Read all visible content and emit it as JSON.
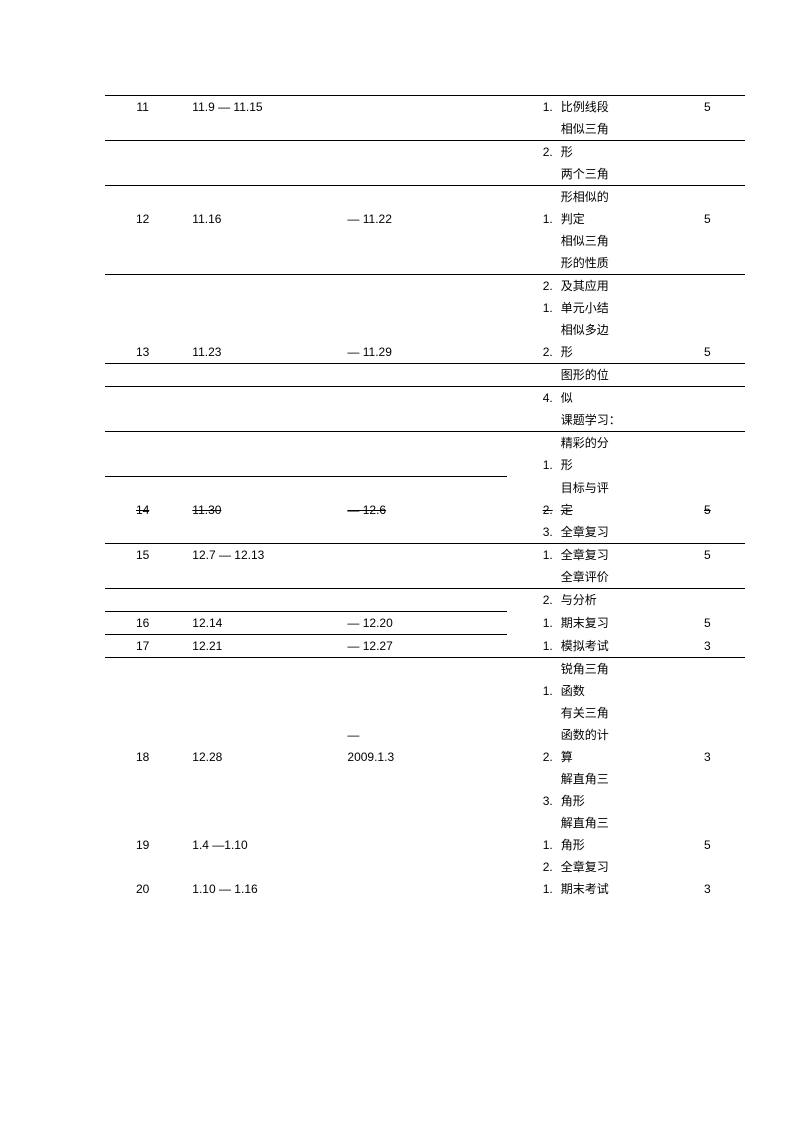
{
  "rows": [
    {
      "type": "hr"
    },
    {
      "week": "11",
      "date1": "11.9 — 11.15",
      "date2": "",
      "idx": "1.",
      "content": "比例线段",
      "hours": "5"
    },
    {
      "week": "",
      "date1": "",
      "date2": "",
      "idx": "",
      "content": "相似三角",
      "hours": ""
    },
    {
      "type": "hr"
    },
    {
      "week": "",
      "date1": "",
      "date2": "",
      "idx": "2.",
      "content": "形",
      "hours": ""
    },
    {
      "week": "",
      "date1": "",
      "date2": "",
      "idx": "",
      "content": "两个三角",
      "hours": ""
    },
    {
      "type": "hr"
    },
    {
      "week": "",
      "date1": "",
      "date2": "",
      "idx": "",
      "content": "形相似的",
      "hours": ""
    },
    {
      "week": "12",
      "date1": "11.16",
      "date2": "— 11.22",
      "idx": "1.",
      "content": "判定",
      "hours": "5"
    },
    {
      "week": "",
      "date1": "",
      "date2": "",
      "idx": "",
      "content": "相似三角",
      "hours": ""
    },
    {
      "week": "",
      "date1": "",
      "date2": "",
      "idx": "",
      "content": "形的性质",
      "hours": ""
    },
    {
      "type": "hr"
    },
    {
      "week": "",
      "date1": "",
      "date2": "",
      "idx": "2.",
      "content": "及其应用",
      "hours": ""
    },
    {
      "week": "",
      "date1": "",
      "date2": "",
      "idx": "1.",
      "content": "单元小结",
      "hours": ""
    },
    {
      "week": "",
      "date1": "",
      "date2": "",
      "idx": "",
      "content": "相似多边",
      "hours": ""
    },
    {
      "week": "13",
      "date1": "11.23",
      "date2": "— 11.29",
      "idx": "2.",
      "content": "形",
      "hours": "5"
    },
    {
      "type": "hr"
    },
    {
      "week": "",
      "date1": "",
      "date2": "",
      "idx": "",
      "content": "图形的位",
      "hours": ""
    },
    {
      "type": "hr"
    },
    {
      "week": "",
      "date1": "",
      "date2": "",
      "idx": "4.",
      "content": "似",
      "hours": ""
    },
    {
      "week": "",
      "date1": "",
      "date2": "",
      "idx": "",
      "content": "课题学习：",
      "hours": ""
    },
    {
      "type": "hr"
    },
    {
      "week": "",
      "date1": "",
      "date2": "",
      "idx": "",
      "content": "精彩的分",
      "hours": ""
    },
    {
      "week": "",
      "date1": "",
      "date2": "",
      "idx": "1.",
      "content": "形",
      "hours": ""
    },
    {
      "type": "hr-short"
    },
    {
      "week": "",
      "date1": "",
      "date2": "",
      "idx": "",
      "content": "目标与评",
      "hours": ""
    },
    {
      "week": "14",
      "date1": "11.30",
      "date2": "— 12.6",
      "idx": "2.",
      "content": "定",
      "hours": "5",
      "strike": true
    },
    {
      "week": "",
      "date1": "",
      "date2": "",
      "idx": "3.",
      "content": "全章复习",
      "hours": ""
    },
    {
      "type": "hr"
    },
    {
      "week": "15",
      "date1": "12.7 — 12.13",
      "date2": "",
      "idx": "1.",
      "content": "全章复习",
      "hours": "5"
    },
    {
      "week": "",
      "date1": "",
      "date2": "",
      "idx": "",
      "content": "全章评价",
      "hours": ""
    },
    {
      "type": "hr"
    },
    {
      "week": "",
      "date1": "",
      "date2": "",
      "idx": "2.",
      "content": "与分析",
      "hours": ""
    },
    {
      "type": "hr-short"
    },
    {
      "week": "16",
      "date1": "12.14",
      "date2": "— 12.20",
      "idx": "1.",
      "content": "期末复习",
      "hours": "5"
    },
    {
      "type": "hr-short"
    },
    {
      "week": "17",
      "date1": "12.21",
      "date2": "— 12.27",
      "idx": "1.",
      "content": "模拟考试",
      "hours": "3"
    },
    {
      "type": "hr"
    },
    {
      "week": "",
      "date1": "",
      "date2": "",
      "idx": "",
      "content": "锐角三角",
      "hours": ""
    },
    {
      "week": "",
      "date1": "",
      "date2": "",
      "idx": "1.",
      "content": "函数",
      "hours": ""
    },
    {
      "week": "",
      "date1": "",
      "date2": "",
      "idx": "",
      "content": "有关三角",
      "hours": ""
    },
    {
      "week": "",
      "date1": "",
      "date2": "—",
      "idx": "",
      "content": "函数的计",
      "hours": ""
    },
    {
      "week": "18",
      "date1": "12.28",
      "date2": "2009.1.3",
      "idx": "2.",
      "content": "算",
      "hours": "3"
    },
    {
      "week": "",
      "date1": "",
      "date2": "",
      "idx": "",
      "content": "解直角三",
      "hours": ""
    },
    {
      "week": "",
      "date1": "",
      "date2": "",
      "idx": "3.",
      "content": "角形",
      "hours": ""
    },
    {
      "week": "",
      "date1": "",
      "date2": "",
      "idx": "",
      "content": "解直角三",
      "hours": ""
    },
    {
      "week": "19",
      "date1": "1.4 —1.10",
      "date2": "",
      "idx": "1.",
      "content": "角形",
      "hours": "5"
    },
    {
      "week": "",
      "date1": "",
      "date2": "",
      "idx": "2.",
      "content": "全章复习",
      "hours": ""
    },
    {
      "week": "20",
      "date1": "1.10 — 1.16",
      "date2": "",
      "idx": "1.",
      "content": "期末考试",
      "hours": "3"
    }
  ]
}
